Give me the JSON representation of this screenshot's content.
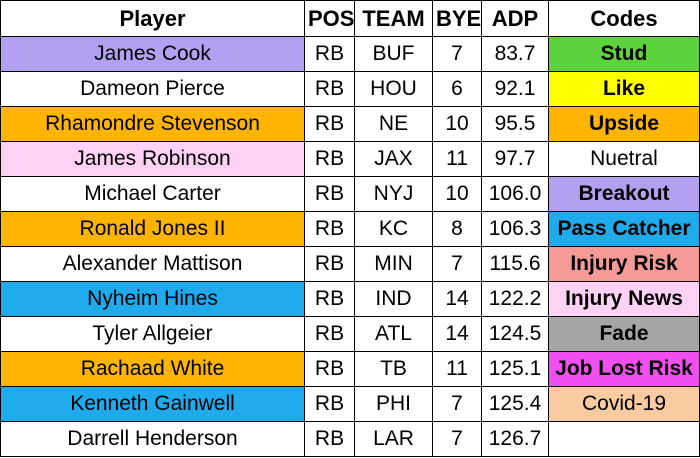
{
  "headers": [
    "Player",
    "POS",
    "TEAM",
    "BYE",
    "ADP",
    "Codes"
  ],
  "rows": [
    {
      "player": "James Cook",
      "pos": "RB",
      "team": "BUF",
      "bye": "7",
      "adp": "83.7",
      "player_color": "#b4a0f0",
      "code": "Stud",
      "code_color": "#5cd33c",
      "code_bold": true
    },
    {
      "player": "Dameon Pierce",
      "pos": "RB",
      "team": "HOU",
      "bye": "6",
      "adp": "92.1",
      "player_color": "#ffffff",
      "code": "Like",
      "code_color": "#ffff00",
      "code_bold": true
    },
    {
      "player": "Rhamondre Stevenson",
      "pos": "RB",
      "team": "NE",
      "bye": "10",
      "adp": "95.5",
      "player_color": "#ffb400",
      "code": "Upside",
      "code_color": "#ffb400",
      "code_bold": true
    },
    {
      "player": "James Robinson",
      "pos": "RB",
      "team": "JAX",
      "bye": "11",
      "adp": "97.7",
      "player_color": "#ffd2f5",
      "code": "Nuetral",
      "code_color": "#ffffff",
      "code_bold": false
    },
    {
      "player": "Michael Carter",
      "pos": "RB",
      "team": "NYJ",
      "bye": "10",
      "adp": "106.0",
      "player_color": "#ffffff",
      "code": "Breakout",
      "code_color": "#b4a0f0",
      "code_bold": true
    },
    {
      "player": "Ronald Jones II",
      "pos": "RB",
      "team": "KC",
      "bye": "8",
      "adp": "106.3",
      "player_color": "#ffb400",
      "code": "Pass Catcher",
      "code_color": "#1eaaeb",
      "code_bold": true
    },
    {
      "player": "Alexander Mattison",
      "pos": "RB",
      "team": "MIN",
      "bye": "7",
      "adp": "115.6",
      "player_color": "#ffffff",
      "code": "Injury Risk",
      "code_color": "#f59a96",
      "code_bold": true
    },
    {
      "player": "Nyheim Hines",
      "pos": "RB",
      "team": "IND",
      "bye": "14",
      "adp": "122.2",
      "player_color": "#1eaaeb",
      "code": "Injury News",
      "code_color": "#ffd2f5",
      "code_bold": true
    },
    {
      "player": "Tyler Allgeier",
      "pos": "RB",
      "team": "ATL",
      "bye": "14",
      "adp": "124.5",
      "player_color": "#ffffff",
      "code": "Fade",
      "code_color": "#a6a6a6",
      "code_bold": true
    },
    {
      "player": "Rachaad White",
      "pos": "RB",
      "team": "TB",
      "bye": "11",
      "adp": "125.1",
      "player_color": "#ffb400",
      "code": "Job Lost Risk",
      "code_color": "#f050f0",
      "code_bold": true
    },
    {
      "player": "Kenneth Gainwell",
      "pos": "RB",
      "team": "PHI",
      "bye": "7",
      "adp": "125.4",
      "player_color": "#1eaaeb",
      "code": "Covid-19",
      "code_color": "#f8cba0",
      "code_bold": false
    },
    {
      "player": "Darrell Henderson",
      "pos": "RB",
      "team": "LAR",
      "bye": "7",
      "adp": "126.7",
      "player_color": "#ffffff",
      "code": "",
      "code_color": "#ffffff",
      "code_bold": false
    }
  ]
}
